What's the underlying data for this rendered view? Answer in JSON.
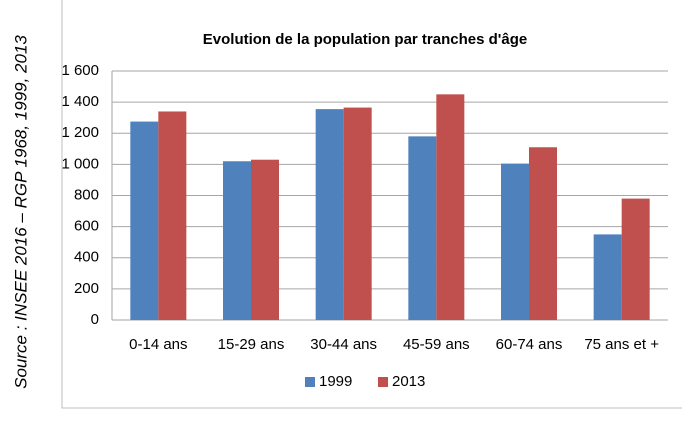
{
  "chart_data": {
    "type": "bar",
    "title": "Evolution de la population par tranches d'âge",
    "source": "Source : INSEE 2016 – RGP 1968, 1999, 2013",
    "categories": [
      "0-14 ans",
      "15-29 ans",
      "30-44 ans",
      "45-59 ans",
      "60-74 ans",
      "75 ans et +"
    ],
    "series": [
      {
        "name": "1999",
        "color": "#4f81bd",
        "values": [
          1275,
          1020,
          1355,
          1180,
          1005,
          550
        ]
      },
      {
        "name": "2013",
        "color": "#c0504d",
        "values": [
          1340,
          1030,
          1365,
          1450,
          1110,
          780
        ]
      }
    ],
    "ylim": [
      0,
      1600
    ],
    "yticks": [
      0,
      200,
      400,
      600,
      800,
      {
        "value": 1000,
        "label": "1 000"
      },
      {
        "value": 1200,
        "label": "1 200"
      },
      {
        "value": 1400,
        "label": "1 400"
      },
      {
        "value": 1600,
        "label": "1 600"
      }
    ],
    "grid": true,
    "legend": "bottom"
  }
}
